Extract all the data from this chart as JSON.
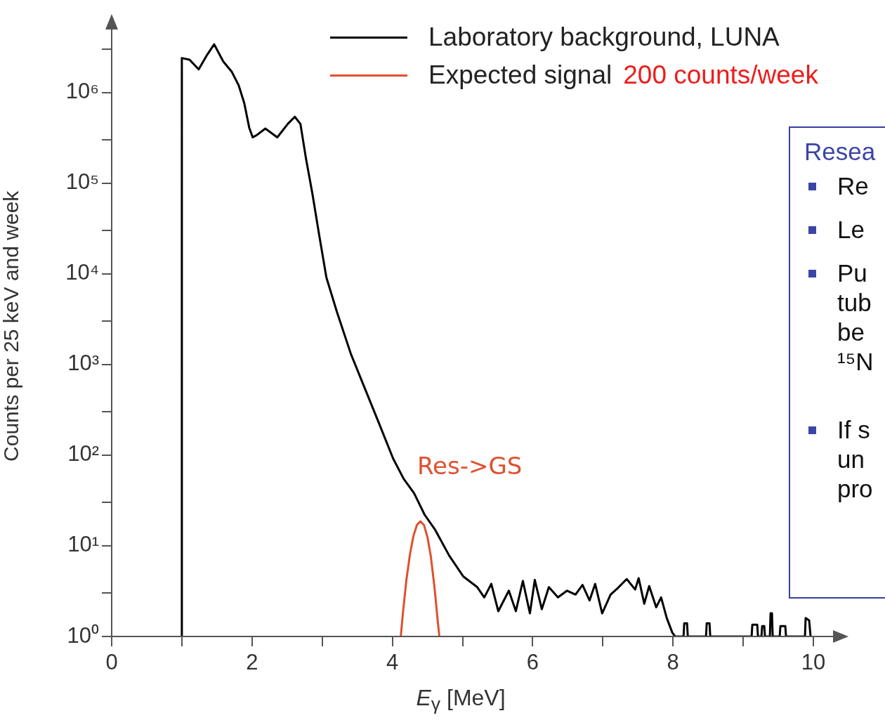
{
  "chart_data": {
    "type": "line",
    "ylabel": "Counts per 25 keV and week",
    "xlabel": "E$_{γ}$ [MeV]",
    "xlim": [
      0,
      10.3
    ],
    "xticks": [
      0,
      {
        "value": 1,
        "label": null
      },
      2,
      {
        "value": 3,
        "label": null
      },
      4,
      {
        "value": 5,
        "label": null
      },
      6,
      {
        "value": 7,
        "label": null
      },
      8,
      {
        "value": 9,
        "label": null
      },
      10
    ],
    "ylim": [
      1,
      7000000
    ],
    "log": true,
    "yticks": [
      {
        "value": 1,
        "label": "10⁰"
      },
      {
        "value": 3,
        "label": null
      },
      {
        "value": 10,
        "label": "10¹"
      },
      {
        "value": 30,
        "label": null
      },
      {
        "value": 100,
        "label": "10²"
      },
      {
        "value": 300,
        "label": null
      },
      {
        "value": 1000,
        "label": "10³"
      },
      {
        "value": 3000,
        "label": null
      },
      {
        "value": 10000,
        "label": "10⁴"
      },
      {
        "value": 30000,
        "label": null
      },
      {
        "value": 100000,
        "label": "10⁵"
      },
      {
        "value": 300000,
        "label": null
      },
      {
        "value": 1000000,
        "label": "10⁶"
      },
      {
        "value": 3000000,
        "label": null
      }
    ],
    "grid": false,
    "legend": "top right",
    "marker": "none",
    "line_style": "solid",
    "series": [
      {
        "name": "Laboratory background, LUNA",
        "color": "#000000",
        "x": [
          1.0,
          1.0,
          1.11,
          1.24,
          1.36,
          1.46,
          1.59,
          1.71,
          1.81,
          1.89,
          1.96,
          2.01,
          2.07,
          2.19,
          2.36,
          2.51,
          2.61,
          2.69,
          2.77,
          2.86,
          2.96,
          3.06,
          3.21,
          3.41,
          3.61,
          3.81,
          4.01,
          4.16,
          4.31,
          4.46,
          4.61,
          4.81,
          5.01,
          5.21,
          5.31,
          5.41,
          5.51,
          5.66,
          5.76,
          5.86,
          5.96,
          6.03,
          6.13,
          6.23,
          6.36,
          6.49,
          6.61,
          6.71,
          6.81,
          6.89,
          6.99,
          7.11,
          7.21,
          7.34,
          7.46,
          7.51,
          7.59,
          7.66,
          7.76,
          7.83,
          7.91,
          7.99,
          8.03,
          8.15,
          8.16,
          8.2,
          8.21,
          8.47,
          8.48,
          8.52,
          8.53,
          9.12,
          9.13,
          9.2,
          9.21,
          9.26,
          9.27,
          9.3,
          9.31,
          9.38,
          9.39,
          9.41,
          9.42,
          9.52,
          9.53,
          9.6,
          9.61,
          9.88,
          9.89,
          9.94,
          9.96
        ],
        "values": [
          1,
          2400000,
          2300000,
          1800000,
          2600000,
          3400000,
          2200000,
          1700000,
          1200000,
          760000,
          410000,
          320000,
          340000,
          400000,
          320000,
          450000,
          540000,
          450000,
          185000,
          77000,
          26000,
          9100,
          3800,
          1300,
          540,
          224,
          92,
          55,
          38,
          22,
          15,
          7.8,
          4.6,
          3.5,
          2.7,
          3.8,
          1.9,
          3.2,
          1.9,
          4.1,
          1.8,
          4.2,
          2.0,
          3.5,
          2.7,
          3.2,
          2.9,
          3.7,
          2.5,
          3.8,
          1.8,
          2.9,
          3.4,
          4.3,
          3.3,
          4.4,
          2.3,
          3.6,
          2.1,
          2.7,
          1.6,
          1.1,
          1,
          1,
          1.4,
          1.4,
          1,
          1,
          1.4,
          1.4,
          1,
          1,
          1.35,
          1.35,
          1,
          1,
          1.3,
          1.3,
          1,
          1,
          1.8,
          1.8,
          1,
          1,
          1.3,
          1.3,
          1,
          1,
          1.6,
          1.5,
          1
        ]
      },
      {
        "name": "Expected signal",
        "color": "#e0502f",
        "x": [
          4.12,
          4.15,
          4.2,
          4.25,
          4.3,
          4.35,
          4.4,
          4.45,
          4.5,
          4.55,
          4.6,
          4.65,
          4.67
        ],
        "values": [
          1,
          1.8,
          4.2,
          8,
          12.8,
          17,
          18.6,
          17,
          12.5,
          7.5,
          3.5,
          1.4,
          1
        ]
      }
    ],
    "annotations": [
      "200 counts/week",
      "Res->GS",
      "Resea",
      "Re",
      "Le",
      "Pu\ntub\nbe\n¹⁵N",
      "If s\nun\npro"
    ]
  }
}
